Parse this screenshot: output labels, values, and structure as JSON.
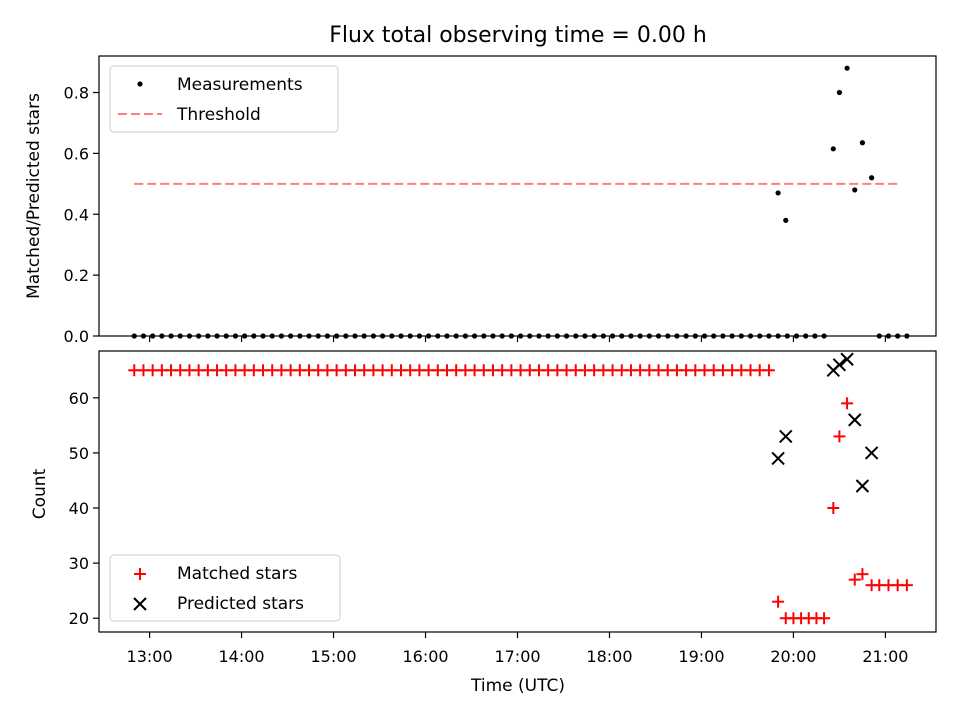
{
  "title": "Flux total observing time = 0.00 h",
  "colors": {
    "measurement": "#000000",
    "threshold": "#ff7f7f",
    "matched": "#ff0000",
    "predicted": "#000000"
  },
  "chart_data": [
    {
      "type": "scatter",
      "ylabel": "Matched/Predicted stars",
      "xlim": [
        "12:27",
        "21:33"
      ],
      "ylim": [
        0,
        0.92
      ],
      "yticks": [
        "0.0",
        "0.2",
        "0.4",
        "0.6",
        "0.8"
      ],
      "yticks_values": [
        0,
        0.2,
        0.4,
        0.6,
        0.8
      ],
      "grid": false,
      "legend_position": "top-left",
      "series": [
        {
          "name": "Measurements",
          "marker": "dot",
          "zero_times": [
            "12:50",
            "12:56",
            "13:02",
            "13:08",
            "13:14",
            "13:20",
            "13:26",
            "13:32",
            "13:38",
            "13:44",
            "13:50",
            "13:56",
            "14:02",
            "14:08",
            "14:14",
            "14:20",
            "14:26",
            "14:32",
            "14:38",
            "14:44",
            "14:50",
            "14:56",
            "15:02",
            "15:08",
            "15:14",
            "15:20",
            "15:26",
            "15:32",
            "15:38",
            "15:44",
            "15:50",
            "15:56",
            "16:02",
            "16:08",
            "16:14",
            "16:20",
            "16:26",
            "16:32",
            "16:38",
            "16:44",
            "16:50",
            "16:56",
            "17:02",
            "17:08",
            "17:14",
            "17:20",
            "17:26",
            "17:32",
            "17:38",
            "17:44",
            "17:50",
            "17:56",
            "18:02",
            "18:08",
            "18:14",
            "18:20",
            "18:26",
            "18:32",
            "18:38",
            "18:44",
            "18:50",
            "18:56",
            "19:02",
            "19:08",
            "19:14",
            "19:20",
            "19:26",
            "19:32",
            "19:38",
            "19:44",
            "19:50",
            "19:56",
            "20:02",
            "20:08",
            "20:14",
            "20:20",
            "20:56",
            "21:02",
            "21:08",
            "21:14"
          ],
          "points": [
            {
              "x": "19:50",
              "y": 0.47
            },
            {
              "x": "19:55",
              "y": 0.38
            },
            {
              "x": "20:26",
              "y": 0.615
            },
            {
              "x": "20:30",
              "y": 0.8
            },
            {
              "x": "20:35",
              "y": 0.88
            },
            {
              "x": "20:40",
              "y": 0.48
            },
            {
              "x": "20:45",
              "y": 0.635
            },
            {
              "x": "20:51",
              "y": 0.52
            }
          ]
        },
        {
          "name": "Threshold",
          "marker": "dashed-line",
          "points": [
            {
              "x": "12:50",
              "y": 0.5
            },
            {
              "x": "21:08",
              "y": 0.5
            }
          ]
        }
      ]
    },
    {
      "type": "scatter",
      "ylabel": "Count",
      "xlabel": "Time (UTC)",
      "xlim": [
        "12:27",
        "21:33"
      ],
      "ylim": [
        17.5,
        68.5
      ],
      "yticks": [
        "20",
        "30",
        "40",
        "50",
        "60"
      ],
      "yticks_values": [
        20,
        30,
        40,
        50,
        60
      ],
      "xticks": [
        "13:00",
        "14:00",
        "15:00",
        "16:00",
        "17:00",
        "18:00",
        "19:00",
        "20:00",
        "21:00"
      ],
      "grid": false,
      "legend_position": "bottom-left",
      "series": [
        {
          "name": "Matched stars",
          "marker": "plus",
          "constant_value": 65,
          "constant_times": [
            "12:50",
            "12:56",
            "13:02",
            "13:08",
            "13:14",
            "13:20",
            "13:26",
            "13:32",
            "13:38",
            "13:44",
            "13:50",
            "13:56",
            "14:02",
            "14:08",
            "14:14",
            "14:20",
            "14:26",
            "14:32",
            "14:38",
            "14:44",
            "14:50",
            "14:56",
            "15:02",
            "15:08",
            "15:14",
            "15:20",
            "15:26",
            "15:32",
            "15:38",
            "15:44",
            "15:50",
            "15:56",
            "16:02",
            "16:08",
            "16:14",
            "16:20",
            "16:26",
            "16:32",
            "16:38",
            "16:44",
            "16:50",
            "16:56",
            "17:02",
            "17:08",
            "17:14",
            "17:20",
            "17:26",
            "17:32",
            "17:38",
            "17:44",
            "17:50",
            "17:56",
            "18:02",
            "18:08",
            "18:14",
            "18:20",
            "18:26",
            "18:32",
            "18:38",
            "18:44",
            "18:50",
            "18:56",
            "19:02",
            "19:08",
            "19:14",
            "19:20",
            "19:26",
            "19:32",
            "19:38",
            "19:44"
          ],
          "points": [
            {
              "x": "19:50",
              "y": 23
            },
            {
              "x": "19:55",
              "y": 20
            },
            {
              "x": "20:00",
              "y": 20
            },
            {
              "x": "20:05",
              "y": 20
            },
            {
              "x": "20:10",
              "y": 20
            },
            {
              "x": "20:15",
              "y": 20
            },
            {
              "x": "20:20",
              "y": 20
            },
            {
              "x": "20:26",
              "y": 40
            },
            {
              "x": "20:30",
              "y": 53
            },
            {
              "x": "20:35",
              "y": 59
            },
            {
              "x": "20:40",
              "y": 27
            },
            {
              "x": "20:45",
              "y": 28
            },
            {
              "x": "20:51",
              "y": 26
            },
            {
              "x": "20:56",
              "y": 26
            },
            {
              "x": "21:02",
              "y": 26
            },
            {
              "x": "21:08",
              "y": 26
            },
            {
              "x": "21:14",
              "y": 26
            }
          ]
        },
        {
          "name": "Predicted stars",
          "marker": "x",
          "points": [
            {
              "x": "19:50",
              "y": 49
            },
            {
              "x": "19:55",
              "y": 53
            },
            {
              "x": "20:26",
              "y": 65
            },
            {
              "x": "20:30",
              "y": 66
            },
            {
              "x": "20:35",
              "y": 67
            },
            {
              "x": "20:40",
              "y": 56
            },
            {
              "x": "20:45",
              "y": 44
            },
            {
              "x": "20:51",
              "y": 50
            }
          ]
        }
      ]
    }
  ]
}
